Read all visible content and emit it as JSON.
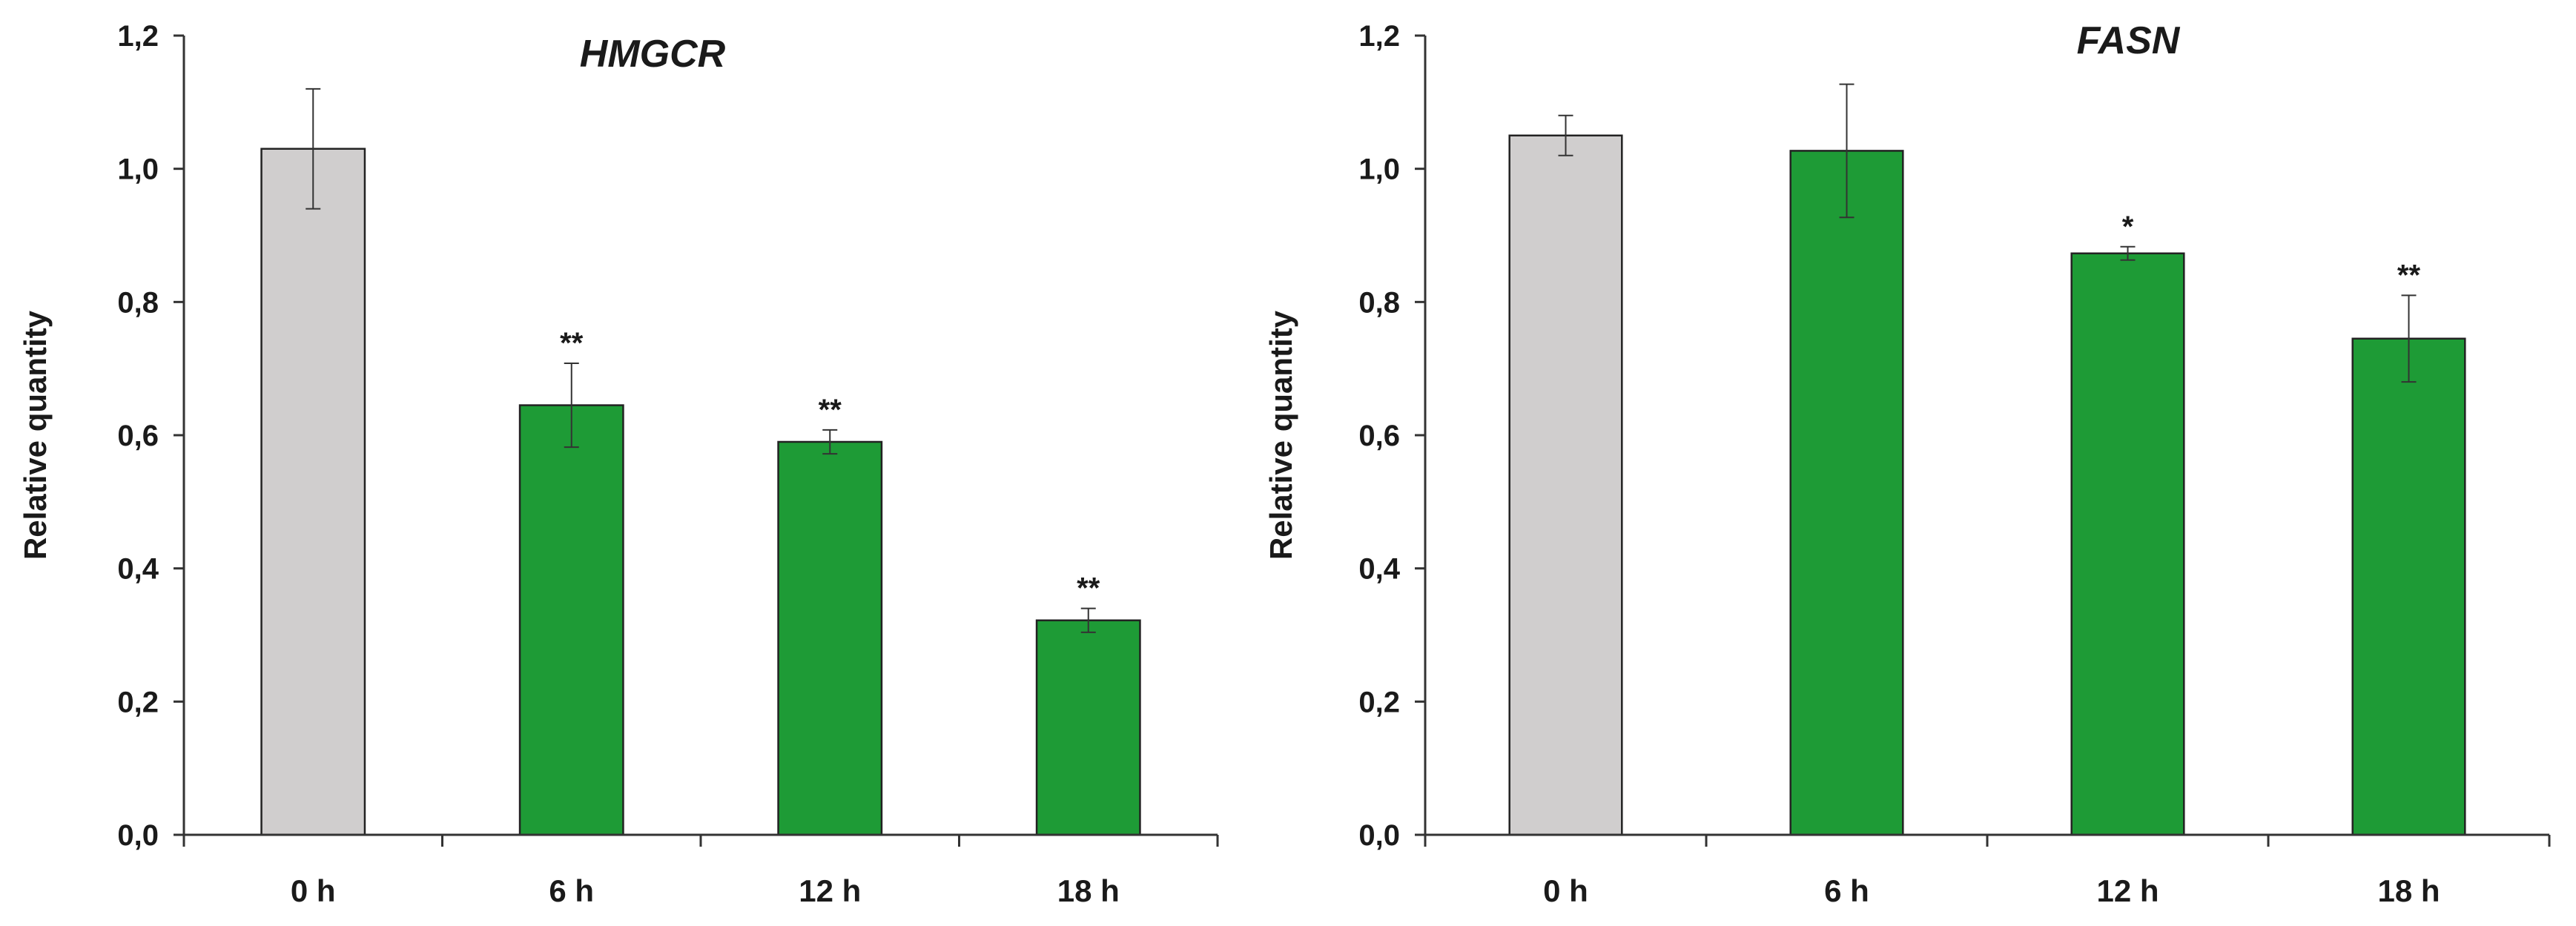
{
  "chart_data": [
    {
      "type": "bar",
      "title": "HMGCR",
      "xlabel": "",
      "ylabel": "Relative quantity",
      "ylim": [
        0,
        1.2
      ],
      "yticks": [
        "0,0",
        "0,2",
        "0,4",
        "0,6",
        "0,8",
        "1,0",
        "1,2"
      ],
      "categories": [
        "0 h",
        "6 h",
        "12 h",
        "18 h"
      ],
      "values": [
        1.03,
        0.645,
        0.59,
        0.322
      ],
      "errors": [
        0.09,
        0.063,
        0.018,
        0.018
      ],
      "significance": [
        "",
        "**",
        "**",
        "**"
      ],
      "colors": [
        "#d0cece",
        "#1e9b36",
        "#1e9b36",
        "#1e9b36"
      ],
      "grid": false
    },
    {
      "type": "bar",
      "title": "FASN",
      "xlabel": "",
      "ylabel": "Relative quantity",
      "ylim": [
        0,
        1.2
      ],
      "yticks": [
        "0,0",
        "0,2",
        "0,4",
        "0,6",
        "0,8",
        "1,0",
        "1,2"
      ],
      "categories": [
        "0 h",
        "6 h",
        "12 h",
        "18 h"
      ],
      "values": [
        1.05,
        1.027,
        0.873,
        0.745
      ],
      "errors": [
        0.03,
        0.1,
        0.01,
        0.065
      ],
      "significance": [
        "",
        "",
        "*",
        "**"
      ],
      "colors": [
        "#d0cece",
        "#1e9b36",
        "#1e9b36",
        "#1e9b36"
      ],
      "grid": false
    }
  ]
}
